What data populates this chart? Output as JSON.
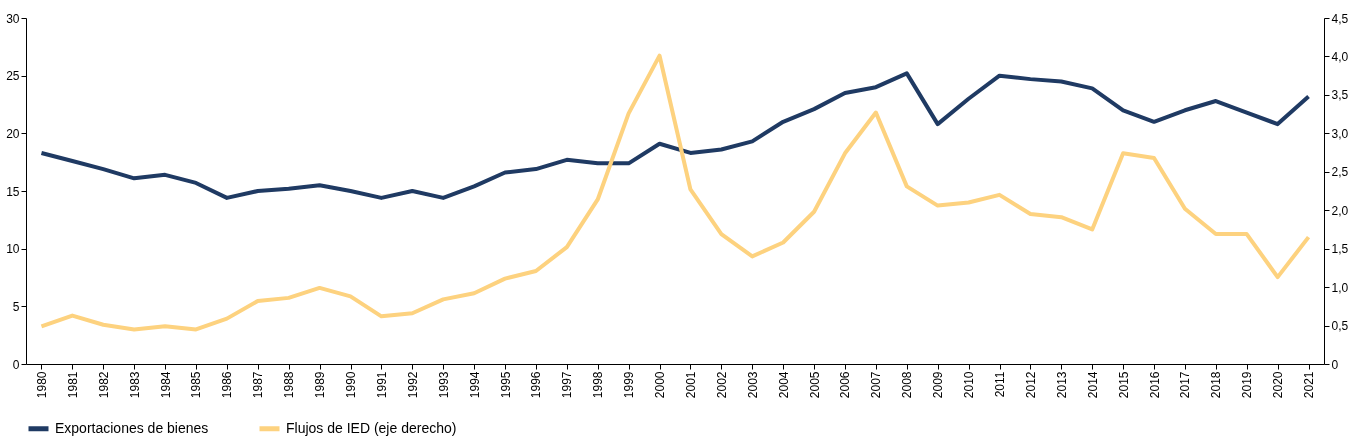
{
  "chart_data": {
    "type": "line",
    "categories": [
      "1980",
      "1981",
      "1982",
      "1983",
      "1984",
      "1985",
      "1986",
      "1987",
      "1988",
      "1989",
      "1990",
      "1991",
      "1992",
      "1993",
      "1994",
      "1995",
      "1996",
      "1997",
      "1998",
      "1999",
      "2000",
      "2001",
      "2002",
      "2003",
      "2004",
      "2005",
      "2006",
      "2007",
      "2008",
      "2009",
      "2010",
      "2011",
      "2012",
      "2013",
      "2014",
      "2015",
      "2016",
      "2017",
      "2018",
      "2019",
      "2020",
      "2021"
    ],
    "series": [
      {
        "name": "Exportaciones de bienes",
        "color": "#1f3a63",
        "values": [
          18.3,
          17.6,
          16.9,
          16.1,
          16.4,
          15.7,
          14.4,
          15.0,
          15.2,
          15.5,
          15.0,
          14.4,
          15.0,
          14.4,
          15.4,
          16.6,
          16.9,
          17.7,
          17.4,
          17.4,
          19.1,
          18.3,
          18.6,
          19.3,
          21.0,
          22.1,
          23.5,
          24.0,
          25.2,
          20.8,
          23.0,
          25.0,
          24.7,
          24.5,
          23.9,
          22.0,
          21.0,
          22.0,
          22.8,
          21.8,
          20.8,
          23.2
        ]
      },
      {
        "name": "Flujos de IED (eje derecho)",
        "color": "#fdd27f",
        "axis": "y2",
        "values": [
          0.49,
          0.63,
          0.51,
          0.45,
          0.49,
          0.45,
          0.59,
          0.82,
          0.86,
          0.99,
          0.88,
          0.62,
          0.66,
          0.84,
          0.92,
          1.11,
          1.21,
          1.52,
          2.14,
          3.26,
          4.01,
          2.27,
          1.69,
          1.4,
          1.58,
          1.98,
          2.74,
          3.27,
          2.31,
          2.06,
          2.1,
          2.2,
          1.95,
          1.91,
          1.75,
          2.74,
          2.68,
          2.02,
          1.69,
          1.69,
          1.13,
          1.65
        ]
      }
    ],
    "ylim": [
      0,
      30
    ],
    "yticks": [
      0,
      5,
      10,
      15,
      20,
      25,
      30
    ],
    "y2lim": [
      0,
      4.5
    ],
    "y2ticks": [
      0,
      {
        "value": 0.5,
        "label": "0,5"
      },
      {
        "value": 1,
        "label": "1,0"
      },
      {
        "value": 1.5,
        "label": "1,5"
      },
      {
        "value": 2,
        "label": "2,0"
      },
      {
        "value": 2.5,
        "label": "2,5"
      },
      {
        "value": 3,
        "label": "3,0"
      },
      {
        "value": 3.5,
        "label": "3,5"
      },
      {
        "value": 4,
        "label": "4,0"
      },
      {
        "value": 4.5,
        "label": "4,5"
      }
    ],
    "grid": false,
    "legend": "bottom",
    "marker": "none",
    "line_style": "solid"
  }
}
